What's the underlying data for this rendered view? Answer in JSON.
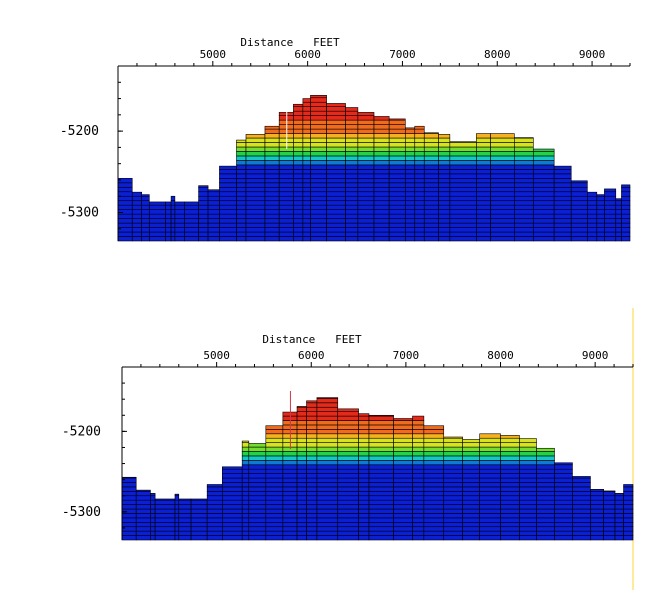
{
  "colors": {
    "background": "#ffffff",
    "right_edge_line": "#ffe27a",
    "palette": [
      "#0a1fd6",
      "#0b7bd8",
      "#12c8c0",
      "#22d24a",
      "#74de2c",
      "#d8e21e",
      "#f6b21e",
      "#f26a1c",
      "#e42a1a"
    ]
  },
  "chart_data": [
    {
      "type": "area",
      "id": "top-panel",
      "title": "Distance   FEET",
      "x_ticks": [
        5000,
        6000,
        7000,
        8000,
        9000
      ],
      "y_ticks": [
        -5200,
        -5300
      ],
      "xlim": [
        4000,
        9400
      ],
      "ylim": [
        -5335,
        -5120
      ],
      "marker_x": 5780,
      "base_elevation": -5245,
      "columns": [
        {
          "x0": 4000,
          "x1": 4150,
          "top": -5258
        },
        {
          "x0": 4150,
          "x1": 4250,
          "top": -5275
        },
        {
          "x0": 4250,
          "x1": 4330,
          "top": -5278
        },
        {
          "x0": 4330,
          "x1": 4500,
          "top": -5287
        },
        {
          "x0": 4500,
          "x1": 4560,
          "top": -5287
        },
        {
          "x0": 4560,
          "x1": 4600,
          "top": -5280
        },
        {
          "x0": 4600,
          "x1": 4700,
          "top": -5287
        },
        {
          "x0": 4700,
          "x1": 4850,
          "top": -5287
        },
        {
          "x0": 4850,
          "x1": 4950,
          "top": -5267
        },
        {
          "x0": 4950,
          "x1": 5070,
          "top": -5272
        },
        {
          "x0": 5070,
          "x1": 5250,
          "top": -5243
        },
        {
          "x0": 5250,
          "x1": 5350,
          "top": -5211
        },
        {
          "x0": 5350,
          "x1": 5550,
          "top": -5204
        },
        {
          "x0": 5550,
          "x1": 5700,
          "top": -5194
        },
        {
          "x0": 5700,
          "x1": 5850,
          "top": -5177
        },
        {
          "x0": 5850,
          "x1": 5950,
          "top": -5167
        },
        {
          "x0": 5950,
          "x1": 6030,
          "top": -5160
        },
        {
          "x0": 6030,
          "x1": 6200,
          "top": -5156
        },
        {
          "x0": 6200,
          "x1": 6400,
          "top": -5166
        },
        {
          "x0": 6400,
          "x1": 6530,
          "top": -5171
        },
        {
          "x0": 6530,
          "x1": 6700,
          "top": -5177
        },
        {
          "x0": 6700,
          "x1": 6860,
          "top": -5182
        },
        {
          "x0": 6860,
          "x1": 7030,
          "top": -5185
        },
        {
          "x0": 7030,
          "x1": 7130,
          "top": -5196
        },
        {
          "x0": 7130,
          "x1": 7230,
          "top": -5194
        },
        {
          "x0": 7230,
          "x1": 7380,
          "top": -5202
        },
        {
          "x0": 7380,
          "x1": 7500,
          "top": -5204
        },
        {
          "x0": 7500,
          "x1": 7780,
          "top": -5213
        },
        {
          "x0": 7780,
          "x1": 7930,
          "top": -5203
        },
        {
          "x0": 7930,
          "x1": 8180,
          "top": -5203
        },
        {
          "x0": 8180,
          "x1": 8380,
          "top": -5208
        },
        {
          "x0": 8380,
          "x1": 8600,
          "top": -5222
        },
        {
          "x0": 8600,
          "x1": 8780,
          "top": -5243
        },
        {
          "x0": 8780,
          "x1": 8950,
          "top": -5261
        },
        {
          "x0": 8950,
          "x1": 9050,
          "top": -5275
        },
        {
          "x0": 9050,
          "x1": 9130,
          "top": -5278
        },
        {
          "x0": 9130,
          "x1": 9250,
          "top": -5271
        },
        {
          "x0": 9250,
          "x1": 9310,
          "top": -5283
        },
        {
          "x0": 9310,
          "x1": 9400,
          "top": -5266
        }
      ]
    },
    {
      "type": "area",
      "id": "bottom-panel",
      "title": "Distance   FEET",
      "x_ticks": [
        5000,
        6000,
        7000,
        8000,
        9000
      ],
      "y_ticks": [
        -5200,
        -5300
      ],
      "xlim": [
        4000,
        9400
      ],
      "ylim": [
        -5335,
        -5120
      ],
      "marker_x": 5780,
      "base_elevation": -5245,
      "columns": [
        {
          "x0": 4000,
          "x1": 4150,
          "top": -5257
        },
        {
          "x0": 4150,
          "x1": 4300,
          "top": -5273
        },
        {
          "x0": 4300,
          "x1": 4350,
          "top": -5277
        },
        {
          "x0": 4350,
          "x1": 4560,
          "top": -5284
        },
        {
          "x0": 4560,
          "x1": 4600,
          "top": -5278
        },
        {
          "x0": 4600,
          "x1": 4730,
          "top": -5284
        },
        {
          "x0": 4730,
          "x1": 4900,
          "top": -5284
        },
        {
          "x0": 4900,
          "x1": 5060,
          "top": -5266
        },
        {
          "x0": 5060,
          "x1": 5270,
          "top": -5244
        },
        {
          "x0": 5270,
          "x1": 5340,
          "top": -5212
        },
        {
          "x0": 5340,
          "x1": 5520,
          "top": -5215
        },
        {
          "x0": 5520,
          "x1": 5700,
          "top": -5193
        },
        {
          "x0": 5700,
          "x1": 5850,
          "top": -5176
        },
        {
          "x0": 5850,
          "x1": 5950,
          "top": -5169
        },
        {
          "x0": 5950,
          "x1": 6060,
          "top": -5162
        },
        {
          "x0": 6060,
          "x1": 6280,
          "top": -5158
        },
        {
          "x0": 6280,
          "x1": 6500,
          "top": -5172
        },
        {
          "x0": 6500,
          "x1": 6610,
          "top": -5178
        },
        {
          "x0": 6610,
          "x1": 6870,
          "top": -5180
        },
        {
          "x0": 6870,
          "x1": 7070,
          "top": -5184
        },
        {
          "x0": 7070,
          "x1": 7190,
          "top": -5181
        },
        {
          "x0": 7190,
          "x1": 7400,
          "top": -5193
        },
        {
          "x0": 7400,
          "x1": 7600,
          "top": -5207
        },
        {
          "x0": 7600,
          "x1": 7780,
          "top": -5210
        },
        {
          "x0": 7780,
          "x1": 8000,
          "top": -5203
        },
        {
          "x0": 8000,
          "x1": 8200,
          "top": -5205
        },
        {
          "x0": 8200,
          "x1": 8380,
          "top": -5209
        },
        {
          "x0": 8380,
          "x1": 8570,
          "top": -5221
        },
        {
          "x0": 8570,
          "x1": 8760,
          "top": -5239
        },
        {
          "x0": 8760,
          "x1": 8950,
          "top": -5256
        },
        {
          "x0": 8950,
          "x1": 9090,
          "top": -5272
        },
        {
          "x0": 9090,
          "x1": 9210,
          "top": -5274
        },
        {
          "x0": 9210,
          "x1": 9300,
          "top": -5277
        },
        {
          "x0": 9300,
          "x1": 9400,
          "top": -5266
        }
      ]
    }
  ]
}
